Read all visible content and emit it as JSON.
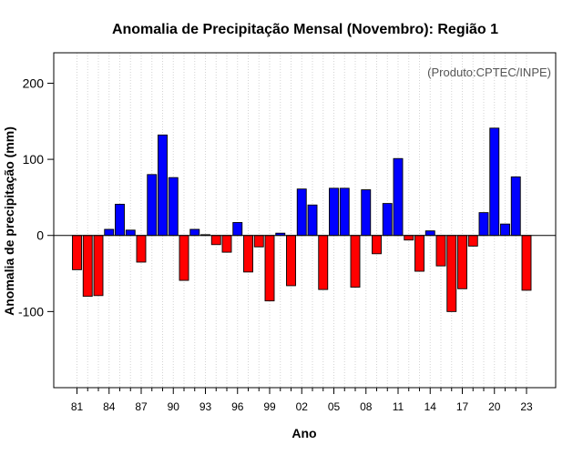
{
  "chart_data": {
    "type": "bar",
    "title": "Anomalia de Precipitação Mensal (Novembro): Região 1",
    "xlabel": "Ano",
    "ylabel": "Anomalia de precipitação (mm)",
    "credit": "(Produto:CPTEC/INPE)",
    "ylim": [
      -200,
      240
    ],
    "yticks": [
      -100,
      0,
      100,
      200
    ],
    "grid": "vertical dotted",
    "categories": [
      "81",
      "82",
      "83",
      "84",
      "85",
      "86",
      "87",
      "88",
      "89",
      "90",
      "91",
      "92",
      "93",
      "94",
      "95",
      "96",
      "97",
      "98",
      "99",
      "00",
      "01",
      "02",
      "03",
      "04",
      "05",
      "06",
      "07",
      "08",
      "09",
      "10",
      "11",
      "12",
      "13",
      "14",
      "15",
      "16",
      "17",
      "18",
      "19",
      "20",
      "21",
      "22",
      "23"
    ],
    "xtick_labels": [
      "81",
      "84",
      "87",
      "90",
      "93",
      "96",
      "99",
      "02",
      "05",
      "08",
      "11",
      "14",
      "17",
      "20",
      "23"
    ],
    "values": [
      -45,
      -80,
      -79,
      8,
      41,
      7,
      -35,
      80,
      132,
      76,
      -59,
      8,
      1,
      -12,
      -22,
      17,
      -48,
      -15,
      -86,
      3,
      -66,
      61,
      40,
      -71,
      62,
      62,
      -68,
      60,
      -24,
      42,
      101,
      -6,
      -47,
      6,
      -40,
      -100,
      -70,
      -14,
      30,
      141,
      15,
      77,
      -72
    ],
    "colors": {
      "positive": "#0000ff",
      "negative": "#ff0000",
      "zero_line": "#000000",
      "grid": "#d3d3d3"
    }
  }
}
